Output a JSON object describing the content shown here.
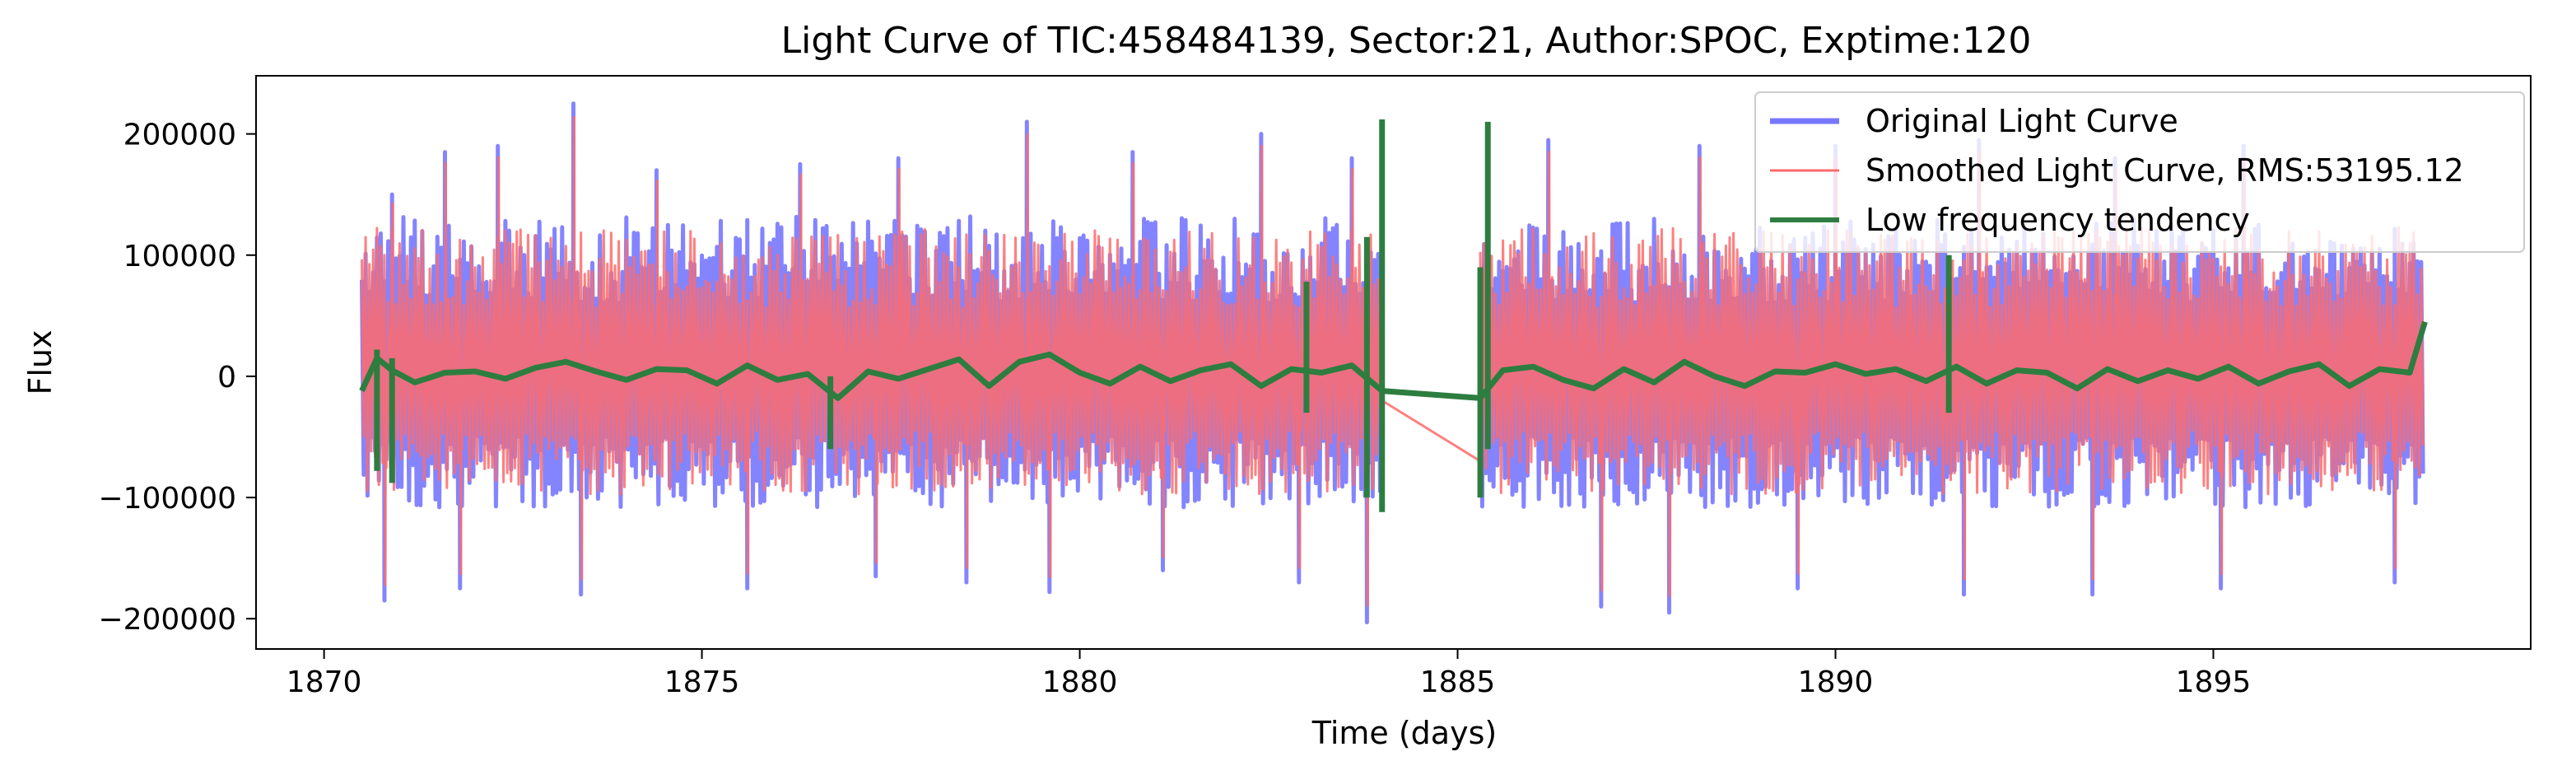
{
  "chart_data": {
    "type": "line",
    "title": "Light Curve of TIC:458484139, Sector:21, Author:SPOC, Exptime:120",
    "xlabel": "Time (days)",
    "ylabel": "Flux",
    "xlim": [
      1869.1,
      1899.2
    ],
    "ylim": [
      -225000,
      248000
    ],
    "xticks": [
      1870,
      1875,
      1880,
      1885,
      1890,
      1895
    ],
    "xtick_labels": [
      "1870",
      "1875",
      "1880",
      "1885",
      "1890",
      "1895"
    ],
    "yticks": [
      -200000,
      -100000,
      0,
      100000,
      200000
    ],
    "ytick_labels": [
      "−200000",
      "−100000",
      "0",
      "100000",
      "200000"
    ],
    "grid": false,
    "legend_position": "top-right",
    "gaps": [
      [
        1884.0,
        1885.3
      ]
    ],
    "segments": [
      [
        1870.5,
        1884.0
      ],
      [
        1885.3,
        1897.8
      ]
    ],
    "envelope": {
      "typical_high": 110000,
      "typical_low": -90000,
      "max": 225000,
      "min": -203000
    },
    "series": [
      {
        "name": "Original Light Curve",
        "color": "#7777ff",
        "style": "dense oscillation",
        "peaks": [
          [
            1870.9,
            150000
          ],
          [
            1871.6,
            185000
          ],
          [
            1872.3,
            190000
          ],
          [
            1873.3,
            225000
          ],
          [
            1874.4,
            170000
          ],
          [
            1876.3,
            175000
          ],
          [
            1877.6,
            180000
          ],
          [
            1879.3,
            210000
          ],
          [
            1880.7,
            185000
          ],
          [
            1882.4,
            200000
          ],
          [
            1883.6,
            180000
          ],
          [
            1886.2,
            195000
          ],
          [
            1888.2,
            190000
          ],
          [
            1890.0,
            190000
          ],
          [
            1891.9,
            195000
          ],
          [
            1893.7,
            180000
          ],
          [
            1895.4,
            190000
          ]
        ],
        "troughs": [
          [
            1870.8,
            -185000
          ],
          [
            1871.8,
            -175000
          ],
          [
            1873.4,
            -180000
          ],
          [
            1875.6,
            -175000
          ],
          [
            1877.3,
            -165000
          ],
          [
            1878.5,
            -170000
          ],
          [
            1879.6,
            -178000
          ],
          [
            1881.1,
            -160000
          ],
          [
            1882.9,
            -170000
          ],
          [
            1883.8,
            -203000
          ],
          [
            1886.9,
            -190000
          ],
          [
            1887.8,
            -195000
          ],
          [
            1889.5,
            -175000
          ],
          [
            1891.7,
            -180000
          ],
          [
            1893.4,
            -180000
          ],
          [
            1895.1,
            -175000
          ],
          [
            1897.4,
            -170000
          ]
        ]
      },
      {
        "name": "Smoothed Light Curve, RMS:53195.12",
        "color": "#ff6a6a",
        "style": "dense oscillation",
        "gap_line": [
          [
            1884.0,
            -20000
          ],
          [
            1885.3,
            -70000
          ]
        ]
      },
      {
        "name": "Low frequency tendency",
        "color": "#2e7d40",
        "x": [
          1870.5,
          1870.7,
          1870.9,
          1871.2,
          1871.6,
          1872.0,
          1872.4,
          1872.8,
          1873.2,
          1873.6,
          1874.0,
          1874.4,
          1874.8,
          1875.2,
          1875.6,
          1876.0,
          1876.4,
          1876.8,
          1877.2,
          1877.6,
          1878.0,
          1878.4,
          1878.8,
          1879.2,
          1879.6,
          1880.0,
          1880.4,
          1880.8,
          1881.2,
          1881.6,
          1882.0,
          1882.4,
          1882.8,
          1883.2,
          1883.6,
          1884.0,
          1885.3,
          1885.6,
          1886.0,
          1886.4,
          1886.8,
          1887.2,
          1887.6,
          1888.0,
          1888.4,
          1888.8,
          1889.2,
          1889.6,
          1890.0,
          1890.4,
          1890.8,
          1891.2,
          1891.6,
          1892.0,
          1892.4,
          1892.8,
          1893.2,
          1893.6,
          1894.0,
          1894.4,
          1894.8,
          1895.2,
          1895.6,
          1896.0,
          1896.4,
          1896.8,
          1897.2,
          1897.6,
          1897.8
        ],
        "values": [
          -12000,
          15000,
          5000,
          -5000,
          3000,
          4000,
          -2000,
          7000,
          12000,
          4000,
          -3000,
          6000,
          5000,
          -6000,
          9000,
          -3000,
          2000,
          -18000,
          4000,
          -2000,
          6000,
          14000,
          -8000,
          12000,
          18000,
          3000,
          -6000,
          8000,
          -4000,
          5000,
          10000,
          -8000,
          6000,
          3000,
          9000,
          -12000,
          -18000,
          5000,
          8000,
          -3000,
          -10000,
          6000,
          -5000,
          12000,
          0,
          -8000,
          4000,
          3000,
          10000,
          2000,
          6000,
          -4000,
          8000,
          -6000,
          5000,
          3000,
          -10000,
          6000,
          -4000,
          5000,
          -2000,
          8000,
          -6000,
          4000,
          10000,
          -8000,
          6000,
          3000,
          45000
        ],
        "spikes": [
          [
            1870.7,
            -78000,
            22000
          ],
          [
            1870.9,
            -88000,
            15000
          ],
          [
            1876.7,
            -60000,
            0
          ],
          [
            1883.0,
            -30000,
            78000
          ],
          [
            1883.8,
            -100000,
            115000
          ],
          [
            1884.0,
            -112000,
            212000
          ],
          [
            1885.3,
            -100000,
            90000
          ],
          [
            1885.4,
            -60000,
            210000
          ],
          [
            1891.5,
            -30000,
            100000
          ]
        ]
      }
    ]
  }
}
